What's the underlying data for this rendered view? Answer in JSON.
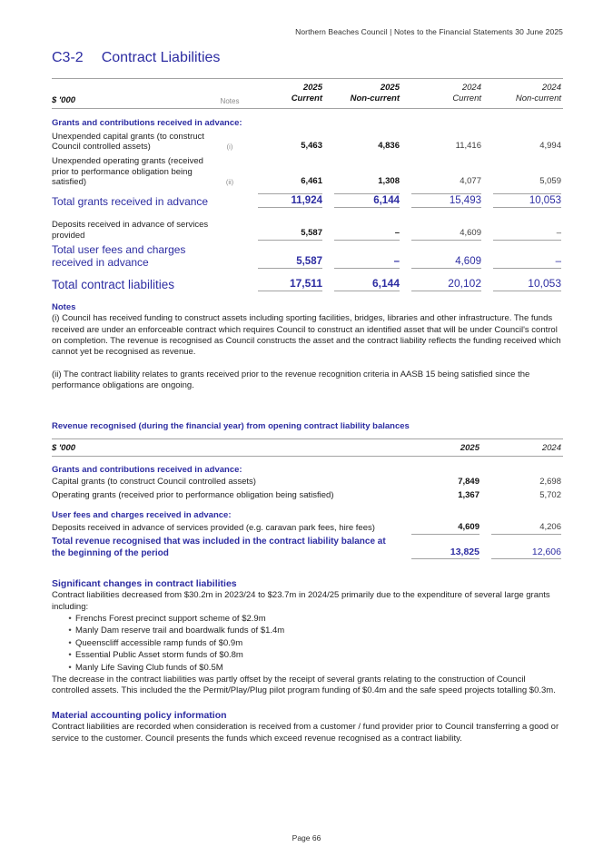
{
  "page": {
    "header": "Northern Beaches Council | Notes to the Financial Statements 30 June 2025",
    "footer": "Page 66"
  },
  "title": {
    "code": "C3-2",
    "text": "Contract Liabilities"
  },
  "table1": {
    "unit": "$ '000",
    "notes_label": "Notes",
    "columns": [
      {
        "year": "2025",
        "type": "Current"
      },
      {
        "year": "2025",
        "type": "Non-current"
      },
      {
        "year": "2024",
        "type": "Current"
      },
      {
        "year": "2024",
        "type": "Non-current"
      }
    ],
    "section1": "Grants and contributions received in advance:",
    "rows": [
      {
        "label": "Unexpended capital grants (to construct Council controlled assets)",
        "note": "(i)",
        "values": [
          "5,463",
          "4,836",
          "11,416",
          "4,994"
        ]
      },
      {
        "label": "Unexpended operating grants (received prior to performance obligation being satisfied)",
        "note": "(ii)",
        "values": [
          "6,461",
          "1,308",
          "4,077",
          "5,059"
        ]
      },
      {
        "label": "Total grants received in advance",
        "values": [
          "11,924",
          "6,144",
          "15,493",
          "10,053"
        ]
      },
      {
        "label": "Deposits received in advance of services provided",
        "values": [
          "5,587",
          "–",
          "4,609",
          "–"
        ]
      },
      {
        "label": "Total user fees and charges received in advance",
        "values": [
          "5,587",
          "–",
          "4,609",
          "–"
        ]
      },
      {
        "label": "Total contract liabilities",
        "values": [
          "17,511",
          "6,144",
          "20,102",
          "10,053"
        ]
      }
    ]
  },
  "notes": {
    "heading": "Notes",
    "note_i": "(i) Council has received funding to construct assets including sporting facilities, bridges, libraries and other infrastructure. The funds received are under an enforceable contract which requires Council to construct an identified asset that will be under Council's control on completion. The revenue is recognised as Council constructs the asset and the contract liability reflects the funding received which cannot yet be recognised as revenue.",
    "note_ii": "(ii) The contract liability relates to grants received prior to the revenue recognition criteria in AASB 15 being satisfied since the performance obligations are ongoing."
  },
  "table2": {
    "heading": "Revenue recognised (during the financial year) from opening contract liability balances",
    "unit": "$ '000",
    "columns": [
      "2025",
      "2024"
    ],
    "section1": "Grants and contributions received in advance:",
    "section2": "User fees and charges received in advance:",
    "rows": [
      {
        "label": "Capital grants (to construct Council controlled assets)",
        "values": [
          "7,849",
          "2,698"
        ]
      },
      {
        "label": "Operating grants (received prior to performance obligation being satisfied)",
        "values": [
          "1,367",
          "5,702"
        ]
      },
      {
        "label": "Deposits received in advance of services provided (e.g. caravan park fees, hire fees)",
        "values": [
          "4,609",
          "4,206"
        ]
      },
      {
        "label": "Total revenue recognised that was included in the contract liability balance at the beginning of the period",
        "values": [
          "13,825",
          "12,606"
        ]
      }
    ]
  },
  "significant_changes": {
    "heading": "Significant changes in contract liabilities",
    "intro": "Contract liabilities decreased from $30.2m in 2023/24 to $23.7m in 2024/25 primarily due to the expenditure of several large grants including:",
    "bullets": [
      "Frenchs Forest precinct support scheme of $2.9m",
      "Manly Dam reserve trail and boardwalk funds of $1.4m",
      "Queenscliff accessible ramp funds of $0.9m",
      "Essential Public Asset storm funds of $0.8m",
      "Manly Life Saving Club funds of $0.5M"
    ],
    "outro": "The decrease in the contract liabilities was partly offset by the receipt of several grants relating to the construction of Council controlled assets.  This included the the Permit/Play/Plug pilot program funding of $0.4m and the safe speed projects totalling $0.3m."
  },
  "material_policy": {
    "heading": "Material accounting policy information",
    "body": "Contract liabilities are recorded when consideration is received from a customer / fund provider prior to Council transferring a good or service to the customer. Council presents the funds which exceed revenue recognised as a contract liability."
  },
  "colors": {
    "accent": "#2d2da2",
    "rule": "#a3a3a3",
    "muted": "#8a8a8a"
  }
}
